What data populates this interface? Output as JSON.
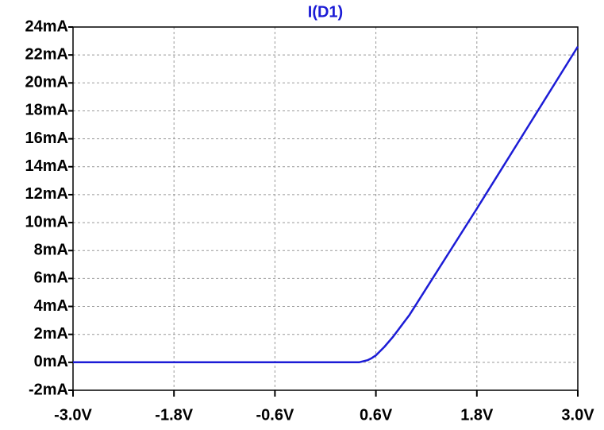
{
  "chart_data": {
    "type": "line",
    "title": "I(D1)",
    "title_color": "#1c1cd6",
    "x": [
      -3.0,
      0.0,
      0.3,
      0.4,
      0.5,
      0.55,
      0.6,
      0.7,
      0.8,
      1.0,
      1.2,
      1.8,
      2.4,
      3.0
    ],
    "values": [
      0,
      0,
      0,
      0,
      0.15,
      0.3,
      0.5,
      1.1,
      1.8,
      3.4,
      5.3,
      11.0,
      16.8,
      22.6
    ],
    "color": "#1c1cd6",
    "xlim": [
      -3.0,
      3.0
    ],
    "ylim": [
      -2,
      24
    ],
    "xticks": [
      {
        "value": -3.0,
        "label": "-3.0V"
      },
      {
        "value": -1.8,
        "label": "-1.8V"
      },
      {
        "value": -0.6,
        "label": "-0.6V"
      },
      {
        "value": 0.6,
        "label": "0.6V"
      },
      {
        "value": 1.8,
        "label": "1.8V"
      },
      {
        "value": 3.0,
        "label": "3.0V"
      }
    ],
    "yticks": [
      {
        "value": -2,
        "label": "-2mA"
      },
      {
        "value": 0,
        "label": "0mA"
      },
      {
        "value": 2,
        "label": "2mA"
      },
      {
        "value": 4,
        "label": "4mA"
      },
      {
        "value": 6,
        "label": "6mA"
      },
      {
        "value": 8,
        "label": "8mA"
      },
      {
        "value": 10,
        "label": "10mA"
      },
      {
        "value": 12,
        "label": "12mA"
      },
      {
        "value": 14,
        "label": "14mA"
      },
      {
        "value": 16,
        "label": "16mA"
      },
      {
        "value": 18,
        "label": "18mA"
      },
      {
        "value": 20,
        "label": "20mA"
      },
      {
        "value": 22,
        "label": "22mA"
      },
      {
        "value": 24,
        "label": "24mA"
      }
    ],
    "grid": true
  }
}
